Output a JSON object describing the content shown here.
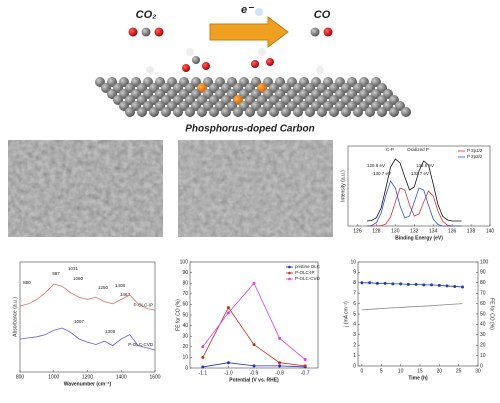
{
  "header": {
    "reactant": "CO₂",
    "electron": "e⁻",
    "product": "CO",
    "caption": "Phosphorus-doped Carbon"
  },
  "chart_data": [
    {
      "type": "line",
      "xlabel": "Binding Energy (eV)",
      "ylabel": "Intensity (a.u.)",
      "xlim": [
        125,
        140
      ],
      "ylim": [
        0,
        80
      ],
      "xticks": [
        126,
        128,
        130,
        132,
        134,
        136,
        138,
        140
      ],
      "legend": "upper right",
      "x": [
        127,
        127.5,
        128,
        128.5,
        129,
        129.5,
        130,
        130.5,
        131,
        131.5,
        132,
        132.5,
        133,
        133.5,
        134,
        134.5,
        135,
        135.5,
        136,
        136.5,
        137
      ],
      "series": [
        {
          "color": "#111111",
          "values": [
            5,
            5.5,
            8.3,
            18,
            38,
            59,
            67,
            63,
            49,
            36,
            39,
            55,
            65,
            61,
            42,
            21.5,
            9.7,
            6,
            5,
            5,
            5
          ]
        },
        {
          "name": "P 2p1/2",
          "color": "#e03030",
          "values": [
            0,
            0,
            0,
            0.3,
            2,
            9,
            24,
            38,
            36,
            21,
            10,
            12,
            24,
            35,
            30,
            15,
            4.7,
            0.9,
            0,
            0,
            0
          ]
        },
        {
          "name": "P 2p3/2",
          "color": "#3050e0",
          "values": [
            0,
            0.5,
            3.3,
            13,
            31,
            45,
            38,
            20,
            8,
            10,
            24,
            38,
            36,
            21,
            7,
            1.5,
            0,
            0,
            0,
            0,
            0
          ]
        }
      ],
      "annotations": [
        "C-P",
        "Oxidized P",
        "129.6 eV",
        "130.7 eV",
        "132.7 eV",
        "133.6 eV"
      ]
    },
    {
      "type": "line",
      "xlabel": "Wavenumber (cm⁻¹)",
      "ylabel": "Absorbance (a.u.)",
      "xlim": [
        800,
        1600
      ],
      "ylim": [
        0,
        100
      ],
      "xticks": [
        800,
        1000,
        1200,
        1400,
        1600
      ],
      "legend": "line-end",
      "x": [
        800,
        850,
        900,
        950,
        1000,
        1050,
        1100,
        1150,
        1200,
        1250,
        1300,
        1350,
        1400,
        1450,
        1500,
        1550,
        1600
      ],
      "series": [
        {
          "name": "P-OLC-IP",
          "color": "#e07070",
          "values": [
            60,
            62,
            66,
            72,
            80,
            78,
            72,
            68,
            66,
            68,
            64,
            62,
            66,
            70,
            62,
            58,
            56
          ]
        },
        {
          "name": "P-OLC-CVD",
          "color": "#6060d0",
          "values": [
            30,
            31,
            32,
            34,
            38,
            40,
            36,
            30,
            27,
            25,
            28,
            24,
            30,
            34,
            24,
            22,
            20
          ]
        }
      ],
      "annotations": [
        "880",
        "987",
        "1031",
        "1060",
        "1250",
        "1408",
        "1463",
        "1097",
        "1309"
      ]
    },
    {
      "type": "line",
      "xlabel": "Potential (V vs. RHE)",
      "ylabel": "FE for CO (%)",
      "xlim": [
        -1.15,
        -0.65
      ],
      "ylim": [
        0,
        100
      ],
      "xticks": [
        {
          "value": -1.1,
          "label": "-1.1"
        },
        {
          "value": -1,
          "label": "-1.0"
        },
        {
          "value": -0.9,
          "label": "-0.9"
        },
        {
          "value": -0.8,
          "label": "-0.8"
        },
        {
          "value": -0.7,
          "label": "-0.7"
        }
      ],
      "yticks": [
        0,
        10,
        20,
        30,
        40,
        50,
        60,
        70,
        80,
        90,
        100
      ],
      "legend": "upper right",
      "x": [
        -1.1,
        -1,
        -0.9,
        -0.8,
        -0.7
      ],
      "series": [
        {
          "name": "pristine OLC",
          "color": "#2030c0",
          "marker": "circle",
          "values": [
            1,
            5,
            2,
            2,
            1
          ]
        },
        {
          "name": "P-OLC-IP",
          "color": "#c03020",
          "marker": "circle",
          "values": [
            10,
            57,
            22,
            5,
            2
          ]
        },
        {
          "name": "P-OLC-CVD",
          "color": "#e040e0",
          "marker": "circle",
          "values": [
            20,
            52,
            80,
            28,
            8
          ]
        }
      ]
    },
    {
      "type": "line",
      "xlabel": "Time (h)",
      "ylabel": "j (mA cm⁻²)",
      "y2label": "FE for CO (%)",
      "xlim": [
        -1,
        30
      ],
      "ylim": [
        0,
        10
      ],
      "y2lim": [
        0,
        100
      ],
      "xticks": [
        0,
        5,
        10,
        15,
        20,
        25,
        30
      ],
      "yticks": [
        0,
        1,
        2,
        3,
        4,
        5,
        6,
        7,
        8,
        9,
        10
      ],
      "y2ticks": [
        0,
        10,
        20,
        30,
        40,
        50,
        60,
        70,
        80,
        90,
        100
      ],
      "series": [
        {
          "color": "#888888",
          "x": [
            0,
            2,
            4,
            6,
            8,
            10,
            12,
            14,
            16,
            18,
            20,
            22,
            24,
            26
          ],
          "values": [
            5.4,
            5.45,
            5.5,
            5.55,
            5.6,
            5.62,
            5.68,
            5.72,
            5.75,
            5.8,
            5.85,
            5.9,
            5.95,
            6.0
          ]
        },
        {
          "color": "#2040b0",
          "axis": "y2",
          "marker": "circle",
          "x": [
            0,
            2,
            4,
            6,
            8,
            10,
            12,
            14,
            16,
            18,
            20,
            22,
            24,
            26
          ],
          "values": [
            80,
            80,
            79.5,
            79.5,
            79,
            79,
            78.5,
            78.5,
            78,
            78,
            77.5,
            77,
            76.5,
            76
          ]
        }
      ]
    }
  ]
}
